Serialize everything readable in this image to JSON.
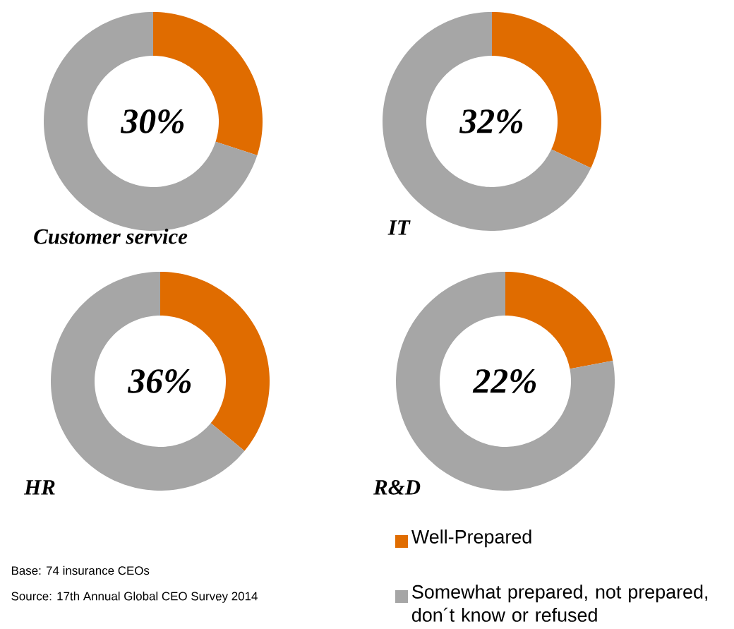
{
  "chart_data": [
    {
      "type": "donut",
      "title": "Customer service",
      "categories": [
        null,
        null
      ],
      "values": [
        30,
        70
      ],
      "colors": [
        "#e06c00",
        "#a6a6a6"
      ],
      "annotations": [
        "30%"
      ]
    },
    {
      "type": "donut",
      "title": "IT",
      "categories": [
        null,
        null
      ],
      "values": [
        32,
        68
      ],
      "colors": [
        "#e06c00",
        "#a6a6a6"
      ],
      "annotations": [
        "32%"
      ]
    },
    {
      "type": "donut",
      "title": "HR",
      "categories": [
        null,
        null
      ],
      "values": [
        36,
        64
      ],
      "colors": [
        "#e06c00",
        "#a6a6a6"
      ],
      "annotations": [
        "36%",
        "Base: 74 insurance CEOs",
        "Source: 17th Annual Global CEO Survey 2014"
      ]
    },
    {
      "type": "donut",
      "title": "R&D",
      "categories": [
        "Well-Prepared",
        "Somewhat prepared, not prepared, don´t know or refused"
      ],
      "values": [
        22,
        78
      ],
      "colors": [
        "#e06c00",
        "#a6a6a6"
      ],
      "annotations": [
        "22%"
      ],
      "legend": "bottom"
    }
  ]
}
